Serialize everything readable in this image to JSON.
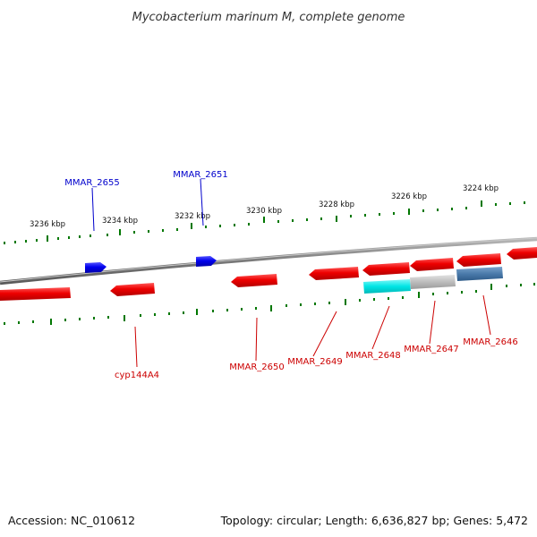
{
  "title": "Mycobacterium marinum M, complete genome",
  "footer": {
    "accession": "Accession: NC_010612",
    "summary": "Topology: circular; Length: 6,636,827 bp; Genes: 5,472"
  },
  "colors": {
    "forward_gene": "#0000ee",
    "reverse_gene": "#ee0000",
    "highlight_cyan": "#00e5e5",
    "highlight_gray": "#bdbdbd",
    "highlight_steel": "#4a7aaa",
    "backbone": "#888888",
    "ticks": "#007700",
    "label_blue": "#0000cc",
    "label_red": "#cc0000"
  },
  "scale_labels": [
    "3236 kbp",
    "3234 kbp",
    "3232 kbp",
    "3230 kbp",
    "3228 kbp",
    "3226 kbp",
    "3224 kbp"
  ],
  "gene_labels": {
    "forward": [
      "MMAR_2655",
      "MMAR_2651"
    ],
    "reverse": [
      "cyp144A4",
      "MMAR_2650",
      "MMAR_2649",
      "MMAR_2648",
      "MMAR_2647",
      "MMAR_2646"
    ]
  }
}
